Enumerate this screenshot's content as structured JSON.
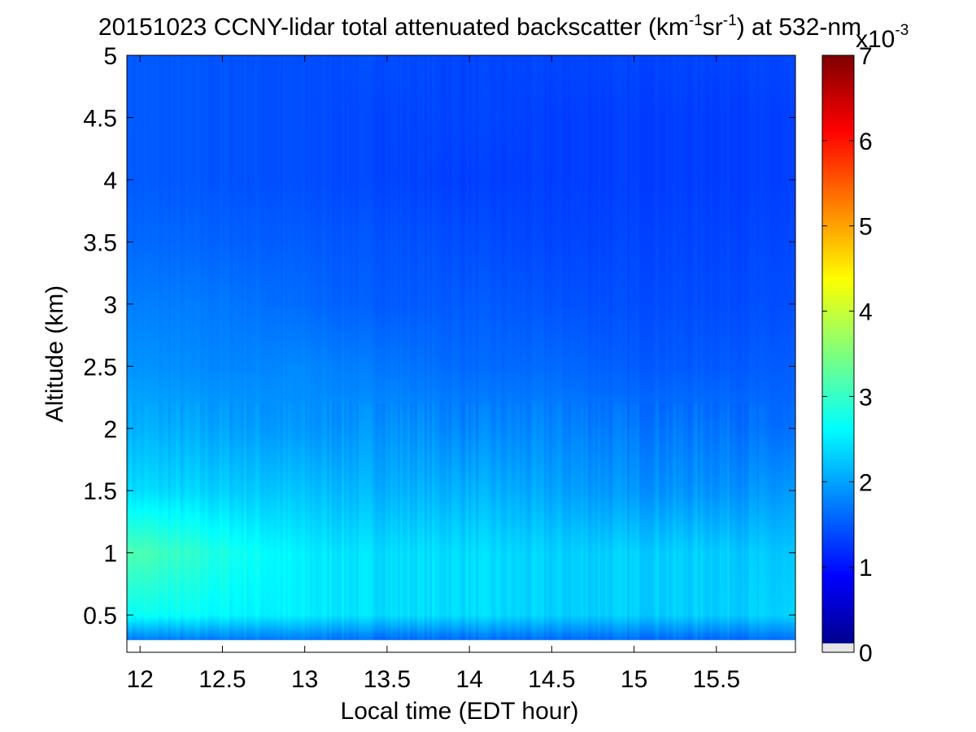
{
  "chart_data": {
    "type": "heatmap",
    "title": {
      "date": "20151023",
      "text_a": "CCNY-lidar total attenuated backscatter (km",
      "sup_a": "-1",
      "text_b": "sr",
      "sup_b": "-1",
      "text_c": ") at 532-nm"
    },
    "xlabel": "Local time (EDT hour)",
    "ylabel": "Altitude (km)",
    "xlim": [
      11.92,
      15.98
    ],
    "ylim": [
      0.2,
      5
    ],
    "data_ylim": [
      0.3,
      5
    ],
    "xticks": [
      "12",
      "12.5",
      "13",
      "13.5",
      "14",
      "14.5",
      "15",
      "15.5"
    ],
    "xtick_values": [
      12,
      12.5,
      13,
      13.5,
      14,
      14.5,
      15,
      15.5
    ],
    "yticks": [
      "0.5",
      "1",
      "1.5",
      "2",
      "2.5",
      "3",
      "3.5",
      "4",
      "4.5",
      "5"
    ],
    "ytick_values": [
      0.5,
      1,
      1.5,
      2,
      2.5,
      3,
      3.5,
      4,
      4.5,
      5
    ],
    "colorbar": {
      "range": [
        0,
        7
      ],
      "ticks": [
        "0",
        "1",
        "2",
        "3",
        "4",
        "5",
        "6",
        "7"
      ],
      "tick_values": [
        0,
        1,
        2,
        3,
        4,
        5,
        6,
        7
      ],
      "multiplier_base": "x10",
      "multiplier_exp": "-3",
      "colormap": "jet",
      "under_color": "#e6e6e6"
    },
    "approx_values_x1e3": {
      "times": [
        11.92,
        12.5,
        13,
        13.5,
        14,
        14.5,
        15,
        15.5,
        15.98
      ],
      "altitudes": [
        0.3,
        0.5,
        1,
        1.5,
        2,
        2.5,
        3,
        3.5,
        4,
        4.5,
        5
      ],
      "z": [
        [
          1.7,
          1.7,
          1.7,
          1.6,
          1.6,
          1.6,
          1.6,
          1.6,
          1.6
        ],
        [
          2.7,
          2.6,
          2.5,
          2.4,
          2.4,
          2.3,
          2.3,
          2.3,
          2.3
        ],
        [
          3.2,
          2.8,
          2.5,
          2.4,
          2.4,
          2.3,
          2.3,
          2.3,
          2.2
        ],
        [
          2.4,
          2.3,
          2.2,
          2.1,
          2.1,
          2.0,
          1.9,
          1.9,
          1.9
        ],
        [
          2.1,
          2.0,
          1.9,
          1.9,
          1.8,
          1.8,
          1.7,
          1.7,
          1.6
        ],
        [
          1.9,
          1.8,
          1.8,
          1.7,
          1.6,
          1.6,
          1.5,
          1.5,
          1.5
        ],
        [
          1.75,
          1.7,
          1.6,
          1.5,
          1.5,
          1.45,
          1.4,
          1.4,
          1.4
        ],
        [
          1.6,
          1.55,
          1.5,
          1.45,
          1.4,
          1.35,
          1.35,
          1.35,
          1.35
        ],
        [
          1.5,
          1.45,
          1.4,
          1.35,
          1.3,
          1.3,
          1.3,
          1.3,
          1.3
        ],
        [
          1.5,
          1.45,
          1.4,
          1.35,
          1.35,
          1.3,
          1.3,
          1.3,
          1.3
        ],
        [
          1.5,
          1.45,
          1.4,
          1.4,
          1.35,
          1.35,
          1.35,
          1.35,
          1.35
        ]
      ]
    }
  }
}
